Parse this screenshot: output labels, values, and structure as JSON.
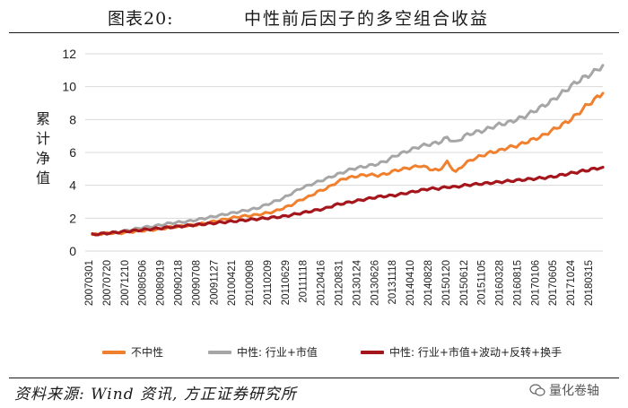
{
  "header": {
    "figure_label": "图表20:",
    "title": "中性前后因子的多空组合收益"
  },
  "source_text": "资料来源: Wind 资讯, 方正证券研究所",
  "watermark_text": "量化卷轴",
  "colors": {
    "series_plain": "#f07f2e",
    "series_industry_mcap": "#a6a6a6",
    "series_full": "#a5161c",
    "grid": "#d9d9d9"
  },
  "chart_data": {
    "type": "line",
    "title": "中性前后因子的多空组合收益",
    "ylabel": "累计净值",
    "xlabel": "",
    "ylim": [
      0,
      12
    ],
    "yticks": [
      0,
      2,
      4,
      6,
      8,
      10,
      12
    ],
    "grid": true,
    "legend_position": "bottom",
    "x_tick_labels": [
      "20070301",
      "20070720",
      "20071210",
      "20080506",
      "20080919",
      "20090218",
      "20090708",
      "20091127",
      "20100421",
      "20100908",
      "20110209",
      "20110629",
      "20111118",
      "20120416",
      "20120831",
      "20130124",
      "20130626",
      "20131118",
      "20140410",
      "20140828",
      "20150120",
      "20150612",
      "20151105",
      "20160328",
      "20160815",
      "20170106",
      "20170605",
      "20171024",
      "20180315"
    ],
    "x_positions": [
      0,
      1,
      2,
      3,
      4,
      5,
      6,
      7,
      8,
      9,
      10,
      11,
      12,
      13,
      14,
      15,
      16,
      17,
      18,
      19,
      20,
      21,
      22,
      23,
      24,
      25,
      26,
      27,
      28,
      29,
      30,
      31,
      32,
      33,
      34,
      35,
      36,
      37,
      38,
      39,
      40,
      41,
      42,
      43,
      44,
      45,
      46,
      47,
      48,
      49,
      50,
      51,
      52,
      53,
      54,
      55,
      56,
      57,
      58,
      59
    ],
    "series": [
      {
        "name": "不中性",
        "color": "#f07f2e",
        "values": [
          1.0,
          1.05,
          1.1,
          1.08,
          1.15,
          1.2,
          1.25,
          1.3,
          1.35,
          1.45,
          1.5,
          1.55,
          1.6,
          1.7,
          1.8,
          1.9,
          2.0,
          2.1,
          2.15,
          2.2,
          2.3,
          2.4,
          2.6,
          2.8,
          3.1,
          3.3,
          3.6,
          3.8,
          4.1,
          4.4,
          4.5,
          4.6,
          4.65,
          4.6,
          4.7,
          4.9,
          5.0,
          5.1,
          5.2,
          5.0,
          4.9,
          5.4,
          4.8,
          5.3,
          5.6,
          5.8,
          6.0,
          6.1,
          6.3,
          6.4,
          6.6,
          6.8,
          7.0,
          7.3,
          7.6,
          7.9,
          8.3,
          8.8,
          9.2,
          9.6
        ]
      },
      {
        "name": "中性: 行业+市值",
        "color": "#a6a6a6",
        "values": [
          1.0,
          1.06,
          1.12,
          1.15,
          1.25,
          1.35,
          1.45,
          1.5,
          1.6,
          1.7,
          1.75,
          1.8,
          1.9,
          2.0,
          2.1,
          2.2,
          2.3,
          2.4,
          2.5,
          2.6,
          2.8,
          3.0,
          3.2,
          3.5,
          3.8,
          4.0,
          4.2,
          4.4,
          4.6,
          4.8,
          5.0,
          5.1,
          5.2,
          5.3,
          5.5,
          5.8,
          6.0,
          6.2,
          6.4,
          6.5,
          6.6,
          6.9,
          6.6,
          7.0,
          7.2,
          7.3,
          7.5,
          7.7,
          7.8,
          8.0,
          8.2,
          8.5,
          8.8,
          9.1,
          9.5,
          9.9,
          10.3,
          10.6,
          10.9,
          11.3
        ]
      },
      {
        "name": "中性: 行业+市值+波动+反转+换手",
        "color": "#a5161c",
        "values": [
          1.0,
          1.05,
          1.1,
          1.15,
          1.2,
          1.25,
          1.3,
          1.35,
          1.4,
          1.45,
          1.5,
          1.55,
          1.6,
          1.65,
          1.7,
          1.75,
          1.8,
          1.85,
          1.9,
          1.95,
          2.0,
          2.05,
          2.1,
          2.2,
          2.3,
          2.4,
          2.5,
          2.6,
          2.8,
          2.9,
          3.0,
          3.1,
          3.2,
          3.3,
          3.35,
          3.4,
          3.5,
          3.6,
          3.7,
          3.8,
          3.8,
          3.9,
          3.9,
          4.0,
          4.05,
          4.1,
          4.15,
          4.2,
          4.25,
          4.3,
          4.35,
          4.4,
          4.45,
          4.5,
          4.6,
          4.7,
          4.8,
          4.9,
          5.0,
          5.1
        ]
      }
    ]
  }
}
